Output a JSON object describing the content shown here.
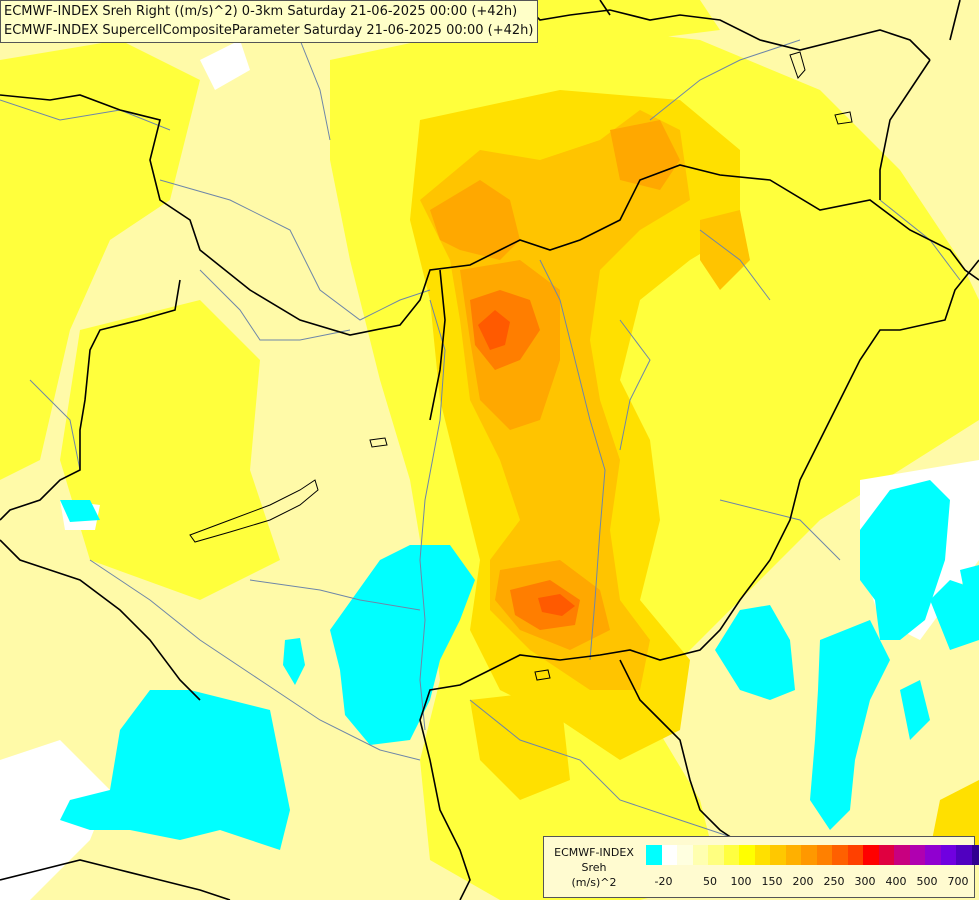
{
  "title": {
    "line1": "ECMWF-INDEX Sreh Right ((m/s)^2) 0-3km Saturday 21-06-2025 00:00 (+42h)",
    "line2": "ECMWF-INDEX SupercellCompositeParameter Saturday 21-06-2025 00:00 (+42h)"
  },
  "legend": {
    "line1": "ECMWF-INDEX",
    "line2": "Sreh",
    "line3": "(m/s)^2",
    "colors": [
      "#00ffff",
      "#ffffff",
      "#ffffe0",
      "#ffffb0",
      "#ffff80",
      "#ffff40",
      "#ffff00",
      "#ffe000",
      "#ffc800",
      "#ffb000",
      "#ff9800",
      "#ff8000",
      "#ff6000",
      "#ff4000",
      "#ff0000",
      "#e00040",
      "#c80080",
      "#b000b0",
      "#9000d0",
      "#7000e0",
      "#5000c0",
      "#300090",
      "#100070"
    ],
    "ticks": [
      "-20",
      "50",
      "100",
      "150",
      "200",
      "250",
      "300",
      "400",
      "500",
      "700"
    ]
  },
  "palette": {
    "background": "#fffaa8",
    "yellow": "#ffff3c",
    "gold": "#ffe000",
    "amber": "#ffc400",
    "orange": "#ffa800",
    "dark_orange": "#ff7e00",
    "red_orange": "#ff5a00",
    "cyan": "#00ffff",
    "white": "#ffffff",
    "borders": "#000000",
    "rivers": "#6e86a8"
  }
}
